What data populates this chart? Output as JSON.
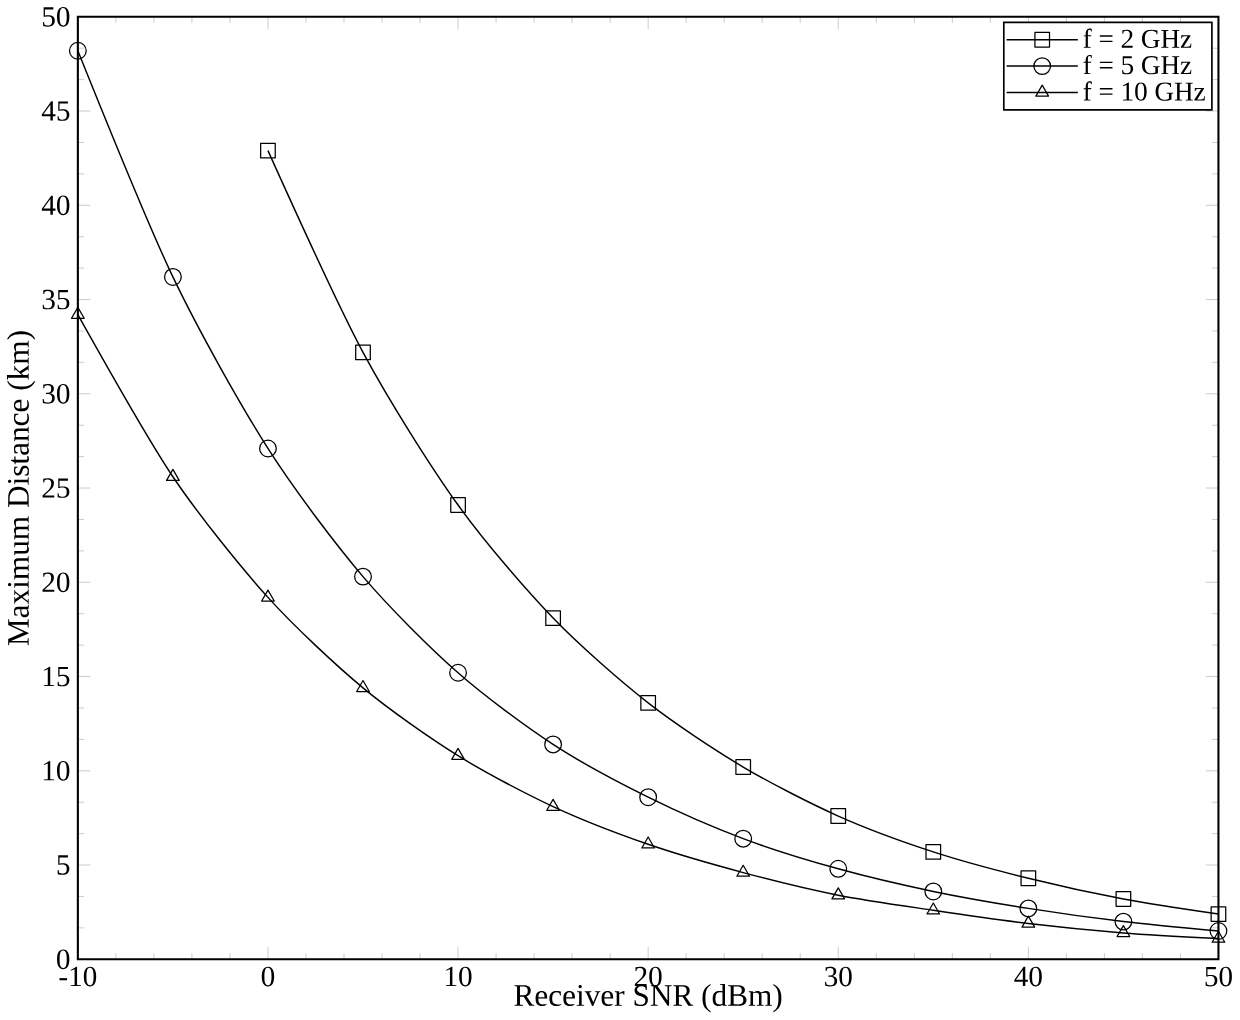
{
  "chart_data": {
    "type": "line",
    "xlabel": "Receiver SNR (dBm)",
    "ylabel": "Maximum Distance (km)",
    "xlim": [
      -10,
      50
    ],
    "ylim": [
      0,
      50
    ],
    "xticks": [
      -10,
      0,
      10,
      20,
      30,
      40,
      50
    ],
    "yticks": [
      0,
      5,
      10,
      15,
      20,
      25,
      30,
      35,
      40,
      45,
      50
    ],
    "legend": "top right",
    "grid": false,
    "series": [
      {
        "name": "f = 2 GHz",
        "color": "#000000",
        "marker": "square",
        "x": [
          0,
          5,
          10,
          15,
          20,
          25,
          30,
          35,
          40,
          45,
          50
        ],
        "values": [
          42.9,
          32.2,
          24.1,
          18.1,
          13.6,
          10.2,
          7.6,
          5.7,
          4.3,
          3.2,
          2.4
        ]
      },
      {
        "name": "f = 5 GHz",
        "color": "#000000",
        "marker": "circle",
        "x": [
          -10,
          -5,
          0,
          5,
          10,
          15,
          20,
          25,
          30,
          35,
          40,
          45,
          50
        ],
        "values": [
          48.2,
          36.2,
          27.1,
          20.3,
          15.2,
          11.4,
          8.6,
          6.4,
          4.8,
          3.6,
          2.7,
          2.0,
          1.5
        ]
      },
      {
        "name": "f = 10 GHz",
        "color": "#000000",
        "marker": "triangle",
        "x": [
          -10,
          -5,
          0,
          5,
          10,
          15,
          20,
          25,
          30,
          35,
          40,
          45,
          50
        ],
        "values": [
          34.2,
          25.6,
          19.2,
          14.4,
          10.8,
          8.1,
          6.1,
          4.6,
          3.4,
          2.6,
          1.9,
          1.4,
          1.1
        ]
      }
    ]
  }
}
